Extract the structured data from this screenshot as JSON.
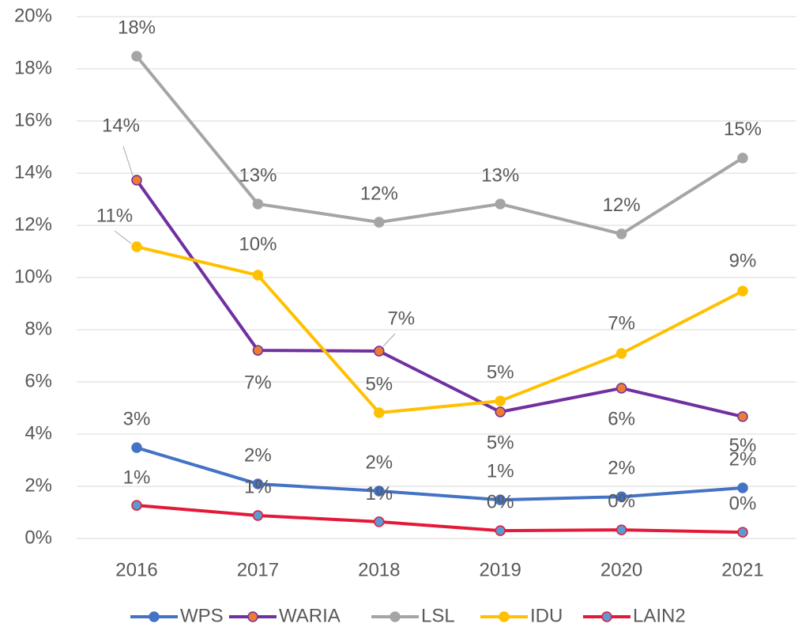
{
  "chart_data": {
    "type": "line",
    "categories": [
      "2016",
      "2017",
      "2018",
      "2019",
      "2020",
      "2021"
    ],
    "series": [
      {
        "name": "WPS",
        "color": "#4472c4",
        "marker_color": "#4472c4",
        "values": [
          3.48,
          2.09,
          1.82,
          1.48,
          1.6,
          1.94
        ],
        "value_labels": [
          "3%",
          "2%",
          "2%",
          "1%",
          "2%",
          "2%"
        ]
      },
      {
        "name": "WARIA",
        "color": "#7030a0",
        "marker_color": "#ed7d31",
        "values": [
          13.73,
          7.21,
          7.18,
          4.85,
          5.76,
          4.67
        ],
        "value_labels": [
          "14%",
          "7%",
          "7%",
          "5%",
          "6%",
          "5%"
        ]
      },
      {
        "name": "LSL",
        "color": "#a5a5a5",
        "marker_color": "#a5a5a5",
        "values": [
          18.48,
          12.82,
          12.12,
          12.82,
          11.67,
          14.58
        ],
        "value_labels": [
          "18%",
          "13%",
          "12%",
          "13%",
          "12%",
          "15%"
        ]
      },
      {
        "name": "IDU",
        "color": "#ffc000",
        "marker_color": "#ffc000",
        "values": [
          11.18,
          10.09,
          4.82,
          5.27,
          7.09,
          9.48
        ],
        "value_labels": [
          "11%",
          "10%",
          "5%",
          "5%",
          "7%",
          "9%"
        ]
      },
      {
        "name": "LAIN2",
        "color": "#e31937",
        "marker_color": "#5b9bd5",
        "values": [
          1.27,
          0.88,
          0.64,
          0.3,
          0.33,
          0.24
        ],
        "value_labels": [
          "1%",
          "1%",
          "1%",
          "0%",
          "0%",
          "0%"
        ]
      }
    ],
    "ylim": [
      0,
      20
    ],
    "yticks": [
      {
        "value": 0,
        "label": "0%"
      },
      {
        "value": 2,
        "label": "2%"
      },
      {
        "value": 4,
        "label": "4%"
      },
      {
        "value": 6,
        "label": "6%"
      },
      {
        "value": 8,
        "label": "8%"
      },
      {
        "value": 10,
        "label": "10%"
      },
      {
        "value": 12,
        "label": "12%"
      },
      {
        "value": 14,
        "label": "14%"
      },
      {
        "value": 16,
        "label": "16%"
      },
      {
        "value": 18,
        "label": "18%"
      },
      {
        "value": 20,
        "label": "20%"
      }
    ],
    "grid": true,
    "legend": "bottom"
  }
}
